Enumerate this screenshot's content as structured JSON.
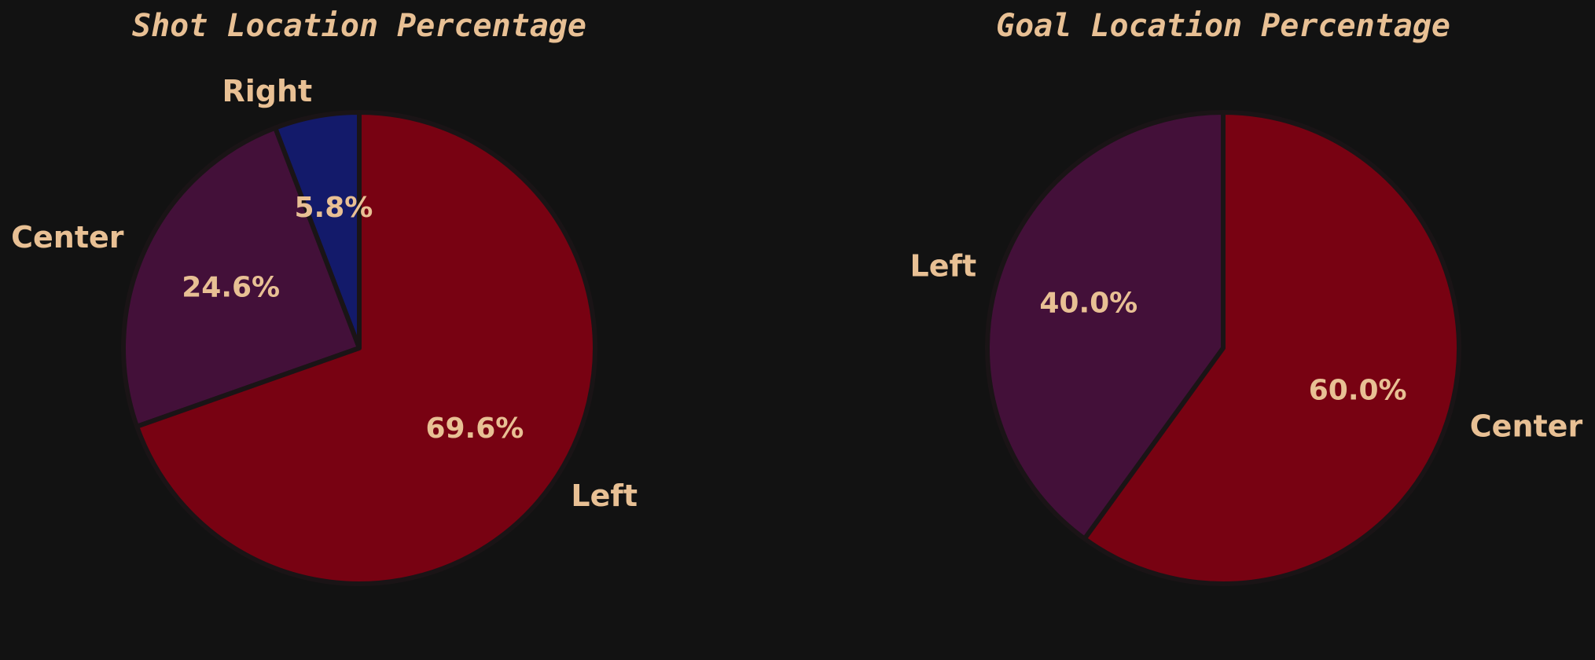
{
  "theme": {
    "background": "#121212",
    "text_color": "#E8C094",
    "edge_color": "#1a1416"
  },
  "chart_data": [
    {
      "type": "pie",
      "title": "Shot Location Percentage",
      "start_angle_deg": 90,
      "direction": "counterclockwise",
      "slices": [
        {
          "label": "Right",
          "value": 5.8,
          "pct_text": "5.8%",
          "color": "#131A6A"
        },
        {
          "label": "Center",
          "value": 24.6,
          "pct_text": "24.6%",
          "color": "#431039"
        },
        {
          "label": "Left",
          "value": 69.6,
          "pct_text": "69.6%",
          "color": "#780212"
        }
      ]
    },
    {
      "type": "pie",
      "title": "Goal Location Percentage",
      "start_angle_deg": 90,
      "direction": "counterclockwise",
      "slices": [
        {
          "label": "Left",
          "value": 40.0,
          "pct_text": "40.0%",
          "color": "#431039"
        },
        {
          "label": "Center",
          "value": 60.0,
          "pct_text": "60.0%",
          "color": "#780212"
        }
      ]
    }
  ]
}
